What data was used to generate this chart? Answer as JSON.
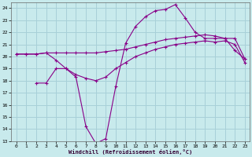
{
  "background_color": "#c8eaec",
  "grid_color": "#a8d0d8",
  "line_color": "#880088",
  "xlabel": "Windchill (Refroidissement éolien,°C)",
  "xlim": [
    -0.5,
    23.5
  ],
  "ylim": [
    13,
    24.5
  ],
  "yticks": [
    13,
    14,
    15,
    16,
    17,
    18,
    19,
    20,
    21,
    22,
    23,
    24
  ],
  "xticks": [
    0,
    1,
    2,
    3,
    4,
    5,
    6,
    7,
    8,
    9,
    10,
    11,
    12,
    13,
    14,
    15,
    16,
    17,
    18,
    19,
    20,
    21,
    22,
    23
  ],
  "line1_x": [
    0,
    1,
    2,
    3,
    4,
    5,
    6,
    7,
    8,
    9,
    10,
    11,
    12,
    13,
    14,
    15,
    16,
    17,
    18,
    19,
    20,
    21,
    22,
    23
  ],
  "line1_y": [
    20.2,
    20.2,
    20.2,
    20.3,
    20.3,
    20.3,
    20.3,
    20.3,
    20.3,
    20.4,
    20.5,
    20.6,
    20.8,
    21.0,
    21.2,
    21.4,
    21.5,
    21.6,
    21.7,
    21.8,
    21.7,
    21.5,
    21.5,
    19.8
  ],
  "line2_x": [
    0,
    1,
    2,
    3,
    4,
    5,
    6,
    7,
    8,
    9,
    10,
    11,
    12,
    13,
    14,
    15,
    16,
    17,
    18,
    19,
    20,
    21,
    22,
    23
  ],
  "line2_y": [
    20.2,
    20.2,
    20.2,
    20.3,
    19.7,
    19.0,
    18.5,
    18.2,
    18.0,
    18.3,
    19.0,
    19.5,
    20.0,
    20.3,
    20.6,
    20.8,
    21.0,
    21.1,
    21.2,
    21.3,
    21.2,
    21.3,
    21.0,
    19.5
  ],
  "line3_x": [
    2,
    3,
    4,
    5,
    6,
    7,
    8,
    9,
    10,
    11,
    12,
    13,
    14,
    15,
    16,
    17,
    18,
    19,
    20,
    21,
    22,
    23
  ],
  "line3_y": [
    17.8,
    17.8,
    19.0,
    19.0,
    18.3,
    14.2,
    12.8,
    13.2,
    17.5,
    21.1,
    22.5,
    23.3,
    23.8,
    23.9,
    24.3,
    23.2,
    22.0,
    21.5,
    21.5,
    21.5,
    20.5,
    19.8
  ]
}
